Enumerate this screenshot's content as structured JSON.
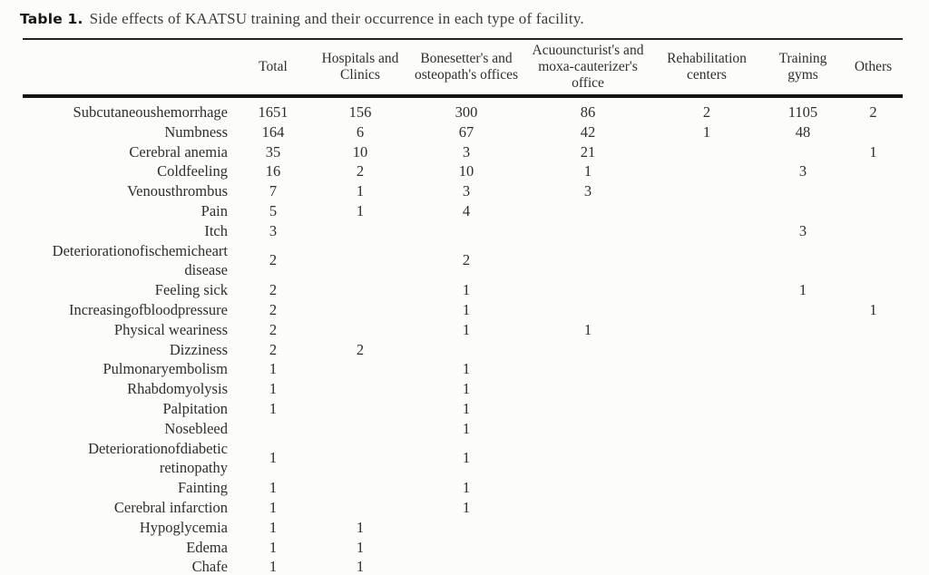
{
  "title": {
    "label": "Table 1.",
    "text": "Side effects of KAATSU training and their occurrence in each type of facility."
  },
  "colors": {
    "background": "#fcfcfa",
    "text": "#2e2e2e",
    "rule": "#141414"
  },
  "table": {
    "columns": [
      "Total",
      "Hospitals and\nClinics",
      "Bonesetter's and\nosteopath's offices",
      "Acuouncturist's and\nmoxa-cauterizer's office",
      "Rehabilitation\ncenters",
      "Training gyms",
      "Others"
    ],
    "rows": [
      {
        "label": "Subcutaneoushemorrhage",
        "values": [
          "1651",
          "156",
          "300",
          "86",
          "2",
          "1105",
          "2"
        ]
      },
      {
        "label": "Numbness",
        "values": [
          "164",
          "6",
          "67",
          "42",
          "1",
          "48",
          ""
        ]
      },
      {
        "label": "Cerebral anemia",
        "values": [
          "35",
          "10",
          "3",
          "21",
          "",
          "",
          "1"
        ]
      },
      {
        "label": "Coldfeeling",
        "values": [
          "16",
          "2",
          "10",
          "1",
          "",
          "3",
          ""
        ]
      },
      {
        "label": "Venousthrombus",
        "values": [
          "7",
          "1",
          "3",
          "3",
          "",
          "",
          ""
        ]
      },
      {
        "label": "Pain",
        "values": [
          "5",
          "1",
          "4",
          "",
          "",
          "",
          ""
        ]
      },
      {
        "label": "Itch",
        "values": [
          "3",
          "",
          "",
          "",
          "",
          "3",
          ""
        ]
      },
      {
        "label": "Deteriorationofischemicheart\ndisease",
        "values": [
          "2",
          "",
          "2",
          "",
          "",
          "",
          ""
        ]
      },
      {
        "label": "Feeling sick",
        "values": [
          "2",
          "",
          "1",
          "",
          "",
          "1",
          ""
        ]
      },
      {
        "label": "Increasingofbloodpressure",
        "values": [
          "2",
          "",
          "1",
          "",
          "",
          "",
          "1"
        ]
      },
      {
        "label": "Physical weariness",
        "values": [
          "2",
          "",
          "1",
          "1",
          "",
          "",
          ""
        ]
      },
      {
        "label": "Dizziness",
        "values": [
          "2",
          "2",
          "",
          "",
          "",
          "",
          ""
        ]
      },
      {
        "label": "Pulmonaryembolism",
        "values": [
          "1",
          "",
          "1",
          "",
          "",
          "",
          ""
        ]
      },
      {
        "label": "Rhabdomyolysis",
        "values": [
          "1",
          "",
          "1",
          "",
          "",
          "",
          ""
        ]
      },
      {
        "label": "Palpitation",
        "values": [
          "1",
          "",
          "1",
          "",
          "",
          "",
          ""
        ]
      },
      {
        "label": "Nosebleed",
        "values": [
          "",
          "",
          "1",
          "",
          "",
          "",
          ""
        ]
      },
      {
        "label": "Deteriorationofdiabetic\nretinopathy",
        "values": [
          "1",
          "",
          "1",
          "",
          "",
          "",
          ""
        ]
      },
      {
        "label": "Fainting",
        "values": [
          "1",
          "",
          "1",
          "",
          "",
          "",
          ""
        ]
      },
      {
        "label": "Cerebral infarction",
        "values": [
          "1",
          "",
          "1",
          "",
          "",
          "",
          ""
        ]
      },
      {
        "label": "Hypoglycemia",
        "values": [
          "1",
          "1",
          "",
          "",
          "",
          "",
          ""
        ]
      },
      {
        "label": "Edema",
        "values": [
          "1",
          "1",
          "",
          "",
          "",
          "",
          ""
        ]
      },
      {
        "label": "Chafe",
        "values": [
          "1",
          "1",
          "",
          "",
          "",
          "",
          ""
        ]
      }
    ]
  }
}
